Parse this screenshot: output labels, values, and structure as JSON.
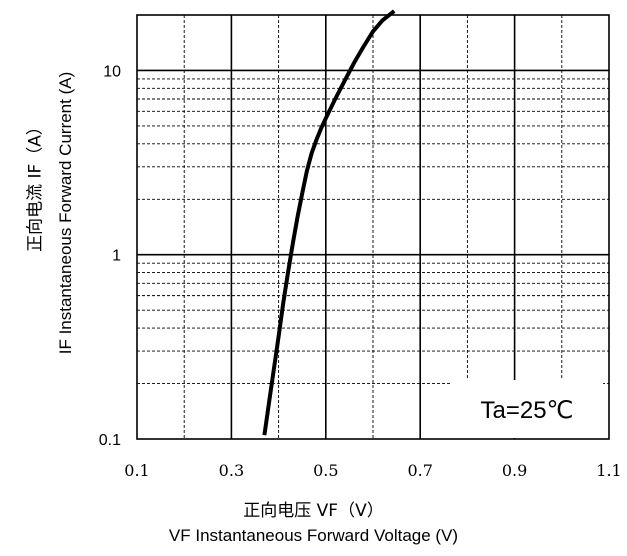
{
  "chart_data": {
    "type": "line",
    "x_axis": {
      "range": [
        0.1,
        1.1
      ],
      "tick_labels": [
        "0.1",
        "0.3",
        "0.5",
        "0.7",
        "0.9",
        "1.1"
      ],
      "tick_values": [
        0.1,
        0.3,
        0.5,
        0.7,
        0.9,
        1.1
      ],
      "label_cn": "正向电压  VF（V）",
      "label_en": "VF  Instantaneous Forward Voltage (V)"
    },
    "y_axis": {
      "scale": "log",
      "range": [
        0.1,
        20
      ],
      "tick_labels": [
        "0.1",
        "1",
        "10"
      ],
      "tick_values": [
        0.1,
        1,
        10
      ],
      "label_cn": "正向电流  IF（A）",
      "label_en": "IF Instantaneous Forward Current (A)"
    },
    "grid": true,
    "annotation": "Ta=25℃",
    "series": [
      {
        "points": [
          [
            0.37,
            0.105
          ],
          [
            0.38,
            0.16
          ],
          [
            0.39,
            0.24
          ],
          [
            0.4,
            0.36
          ],
          [
            0.41,
            0.55
          ],
          [
            0.42,
            0.8
          ],
          [
            0.43,
            1.15
          ],
          [
            0.44,
            1.6
          ],
          [
            0.45,
            2.15
          ],
          [
            0.46,
            2.85
          ],
          [
            0.47,
            3.55
          ],
          [
            0.48,
            4.2
          ],
          [
            0.49,
            4.85
          ],
          [
            0.5,
            5.5
          ],
          [
            0.52,
            7.0
          ],
          [
            0.54,
            8.8
          ],
          [
            0.56,
            11.0
          ],
          [
            0.58,
            13.5
          ],
          [
            0.6,
            16.3
          ],
          [
            0.62,
            18.7
          ],
          [
            0.645,
            21.0
          ]
        ]
      }
    ]
  }
}
